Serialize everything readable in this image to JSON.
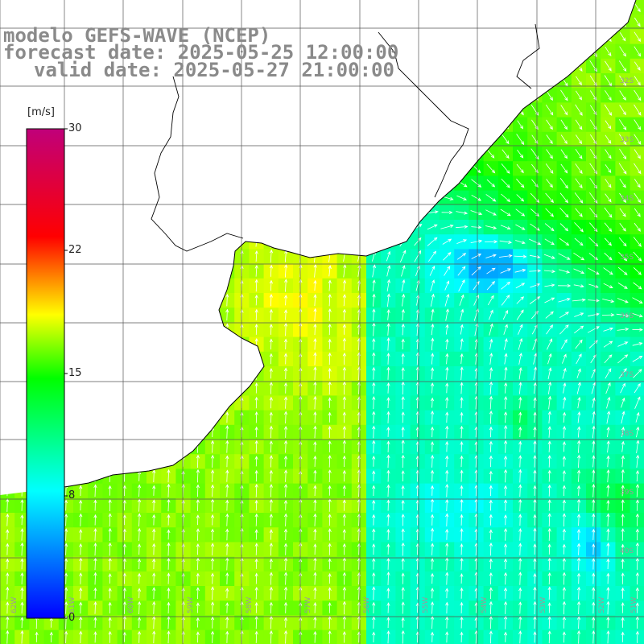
{
  "header": {
    "line1": "modelo GEFS-WAVE (NCEP)",
    "line2": "forecast date: 2025-05-25 12:00:00",
    "line3": "valid date: 2025-05-27 21:00:00"
  },
  "colorbar": {
    "unit": "[m/s]",
    "ticks": [
      "30",
      "22",
      "15",
      "8",
      "0"
    ],
    "stops": [
      "#0000ff",
      "#00ffff",
      "#00ff00",
      "#ffff00",
      "#ff0000",
      "#c0007a"
    ]
  },
  "map": {
    "lat_labels": [
      "32S",
      "33S",
      "34S",
      "35S",
      "36S",
      "37S",
      "38S",
      "39S",
      "40S"
    ],
    "lon_labels": [
      "62W",
      "61W",
      "60W",
      "59W",
      "58W",
      "57W",
      "56W",
      "55W",
      "54W",
      "53W",
      "52W",
      "51W"
    ],
    "land_color": "#ffffff",
    "grid_color": "#555555"
  }
}
